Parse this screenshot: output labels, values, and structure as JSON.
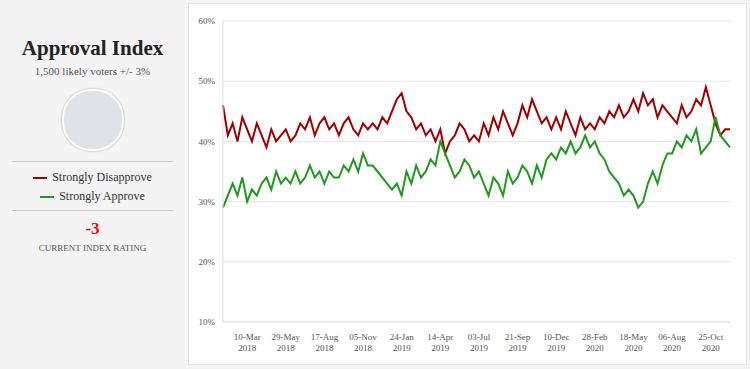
{
  "chart_data": {
    "type": "line",
    "title": "Approval Index",
    "subtitle": "1,500 likely voters +/- 3%",
    "index_rating": {
      "value": -3,
      "label": "CURRENT INDEX RATING"
    },
    "categories": [
      null,
      null,
      null,
      null,
      null,
      "10-Mar 2018",
      null,
      null,
      null,
      null,
      null,
      null,
      null,
      "29-May 2018",
      null,
      null,
      null,
      null,
      null,
      null,
      null,
      "17-Aug 2018",
      null,
      null,
      null,
      null,
      null,
      null,
      null,
      "05-Nov 2018",
      null,
      null,
      null,
      null,
      null,
      null,
      null,
      "24-Jan 2019",
      null,
      null,
      null,
      null,
      null,
      null,
      null,
      "14-Apr 2019",
      null,
      null,
      null,
      null,
      null,
      null,
      null,
      "03-Jul 2019",
      null,
      null,
      null,
      null,
      null,
      null,
      null,
      "21-Sep 2019",
      null,
      null,
      null,
      null,
      null,
      null,
      null,
      "10-Dec 2019",
      null,
      null,
      null,
      null,
      null,
      null,
      null,
      "28-Feb 2020",
      null,
      null,
      null,
      null,
      null,
      null,
      null,
      "18-May 2020",
      null,
      null,
      null,
      null,
      null,
      null,
      null,
      "06-Aug 2020",
      null,
      null,
      null,
      null,
      null,
      null,
      null,
      "25-Oct 2020",
      null,
      null,
      null,
      null
    ],
    "series": [
      {
        "name": "Strongly Disapprove",
        "color": "#a00000",
        "values": [
          46,
          41,
          43,
          40,
          44,
          42,
          40,
          43,
          41,
          39,
          42,
          40,
          41,
          42,
          40,
          41,
          43,
          42,
          44,
          41,
          43,
          44,
          42,
          43,
          41,
          43,
          44,
          42,
          41,
          43,
          42,
          43,
          42,
          44,
          43,
          45,
          47,
          48,
          45,
          44,
          42,
          43,
          41,
          42,
          40,
          42,
          38,
          40,
          41,
          43,
          42,
          40,
          41,
          40,
          43,
          41,
          44,
          42,
          45,
          43,
          41,
          43,
          46,
          44,
          47,
          45,
          43,
          44,
          42,
          44,
          42,
          45,
          43,
          41,
          44,
          42,
          43,
          42,
          44,
          43,
          45,
          44,
          46,
          44,
          45,
          47,
          45,
          48,
          46,
          47,
          44,
          46,
          45,
          44,
          43,
          46,
          44,
          45,
          47,
          46,
          49,
          46,
          43,
          41,
          42,
          42
        ]
      },
      {
        "name": "Strongly Approve",
        "color": "#1f9a1f",
        "values": [
          29,
          31,
          33,
          31,
          34,
          30,
          32,
          31,
          33,
          34,
          32,
          35,
          33,
          34,
          33,
          35,
          33,
          34,
          36,
          34,
          35,
          33,
          35,
          34,
          34,
          36,
          35,
          37,
          35,
          38,
          36,
          36,
          35,
          34,
          33,
          32,
          33,
          31,
          35,
          33,
          36,
          34,
          35,
          37,
          36,
          40,
          38,
          36,
          34,
          35,
          37,
          36,
          34,
          35,
          33,
          31,
          34,
          33,
          31,
          35,
          33,
          34,
          36,
          35,
          33,
          36,
          34,
          37,
          38,
          37,
          39,
          38,
          40,
          38,
          39,
          41,
          39,
          40,
          38,
          37,
          35,
          34,
          33,
          31,
          32,
          31,
          29,
          30,
          33,
          35,
          33,
          36,
          38,
          38,
          40,
          39,
          41,
          40,
          42,
          38,
          39,
          40,
          44,
          41,
          40,
          39
        ]
      }
    ],
    "ylim": [
      10,
      60
    ],
    "yticks": [
      {
        "value": 10,
        "label": "10%"
      },
      {
        "value": 20,
        "label": "20%"
      },
      {
        "value": 30,
        "label": "30%"
      },
      {
        "value": 40,
        "label": "40%"
      },
      {
        "value": 50,
        "label": "50%"
      },
      {
        "value": 60,
        "label": "60%"
      }
    ],
    "grid": true
  }
}
